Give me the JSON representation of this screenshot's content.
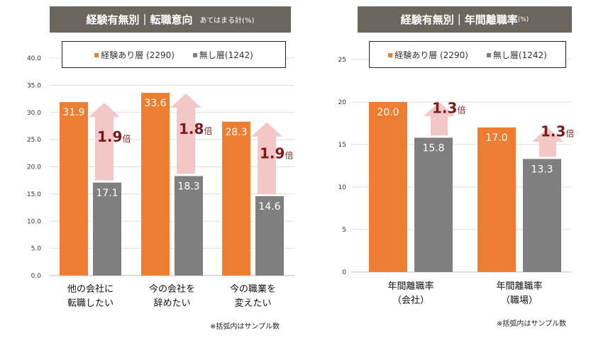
{
  "colors": {
    "experienced": "#ed7d31",
    "none": "#7f7f7f",
    "arrow": "#f4c7c7",
    "ratio_text": "#7b1a1a",
    "title_bg": "#6b665e"
  },
  "chart_data": [
    {
      "type": "bar",
      "title": "経験有無別｜転職意向",
      "subtitle": "あてはまる計(%)",
      "ylim": [
        0,
        40
      ],
      "yticks": [
        "0.0",
        "5.0",
        "10.0",
        "15.0",
        "20.0",
        "25.0",
        "30.0",
        "35.0",
        "40.0"
      ],
      "grid": true,
      "legend": "top",
      "categories": [
        [
          "他の会社に",
          "転職したい"
        ],
        [
          "今の会社を",
          "辞めたい"
        ],
        [
          "今の職業を",
          "変えたい"
        ]
      ],
      "series": [
        {
          "name": "経験あり層 (2290)",
          "values": [
            31.9,
            33.6,
            28.3
          ],
          "labels": [
            "31.9",
            "33.6",
            "28.3"
          ]
        },
        {
          "name": "無し層(1242)",
          "values": [
            17.1,
            18.3,
            14.6
          ],
          "labels": [
            "17.1",
            "18.3",
            "14.6"
          ]
        }
      ],
      "ratios": [
        {
          "num": "1.9",
          "unit": "倍"
        },
        {
          "num": "1.8",
          "unit": "倍"
        },
        {
          "num": "1.9",
          "unit": "倍"
        }
      ],
      "note": "※括弧内はサンプル数"
    },
    {
      "type": "bar",
      "title": "経験有無別｜年間離職率",
      "subtitle": "(%)",
      "ylim": [
        0,
        25
      ],
      "yticks": [
        "0",
        "5",
        "10",
        "15",
        "20",
        "25"
      ],
      "grid": true,
      "legend": "top",
      "categories": [
        [
          "年間離職率",
          "（会社）"
        ],
        [
          "年間離職率",
          "（職場）"
        ]
      ],
      "series": [
        {
          "name": "経験あり層 (2290)",
          "values": [
            20.0,
            17.0
          ],
          "labels": [
            "20.0",
            "17.0"
          ]
        },
        {
          "name": "無し層(1242)",
          "values": [
            15.8,
            13.3
          ],
          "labels": [
            "15.8",
            "13.3"
          ]
        }
      ],
      "ratios": [
        {
          "num": "1.3",
          "unit": "倍"
        },
        {
          "num": "1.3",
          "unit": "倍"
        }
      ],
      "note": "※括弧内はサンプル数"
    }
  ]
}
